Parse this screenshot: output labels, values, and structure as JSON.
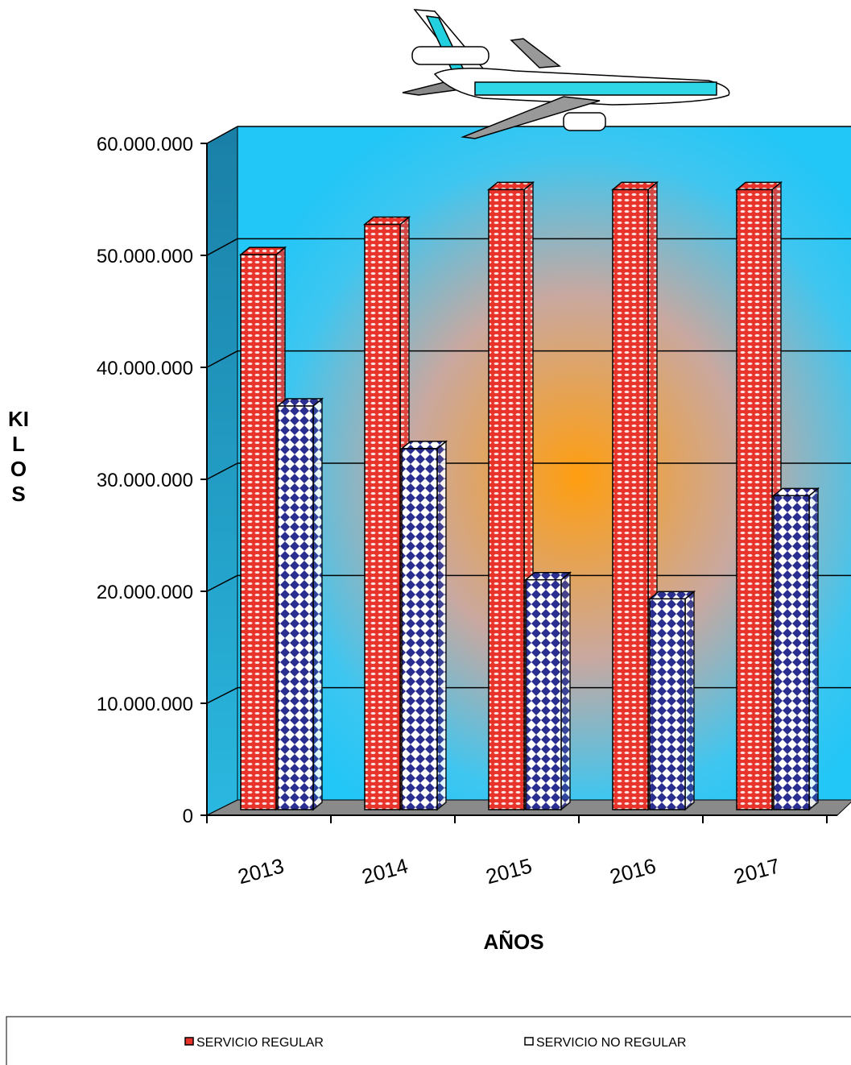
{
  "chart_data": {
    "type": "bar3d",
    "x_label": "AÑOS",
    "y_label": "KILOS",
    "categories": [
      "2013",
      "2014",
      "2015",
      "2016",
      "2017"
    ],
    "series": [
      {
        "name": "SERVICIO REGULAR",
        "color": "#e8332a",
        "values": [
          49500000,
          52200000,
          55300000,
          55300000,
          55300000
        ]
      },
      {
        "name": "SERVICIO NO REGULAR",
        "color": "#2a2f8f",
        "values": [
          36000000,
          32200000,
          20500000,
          18800000,
          28000000
        ]
      }
    ],
    "ylim": [
      0,
      60000000
    ],
    "yticks": [
      {
        "value": 0,
        "label": "0"
      },
      {
        "value": 10000000,
        "label": "10.000.000"
      },
      {
        "value": 20000000,
        "label": "20.000.000"
      },
      {
        "value": 30000000,
        "label": "30.000.000"
      },
      {
        "value": 40000000,
        "label": "40.000.000"
      },
      {
        "value": 50000000,
        "label": "50.000.000"
      },
      {
        "value": 60000000,
        "label": "60.000.000"
      }
    ],
    "grid": true,
    "legend": "bottom"
  }
}
